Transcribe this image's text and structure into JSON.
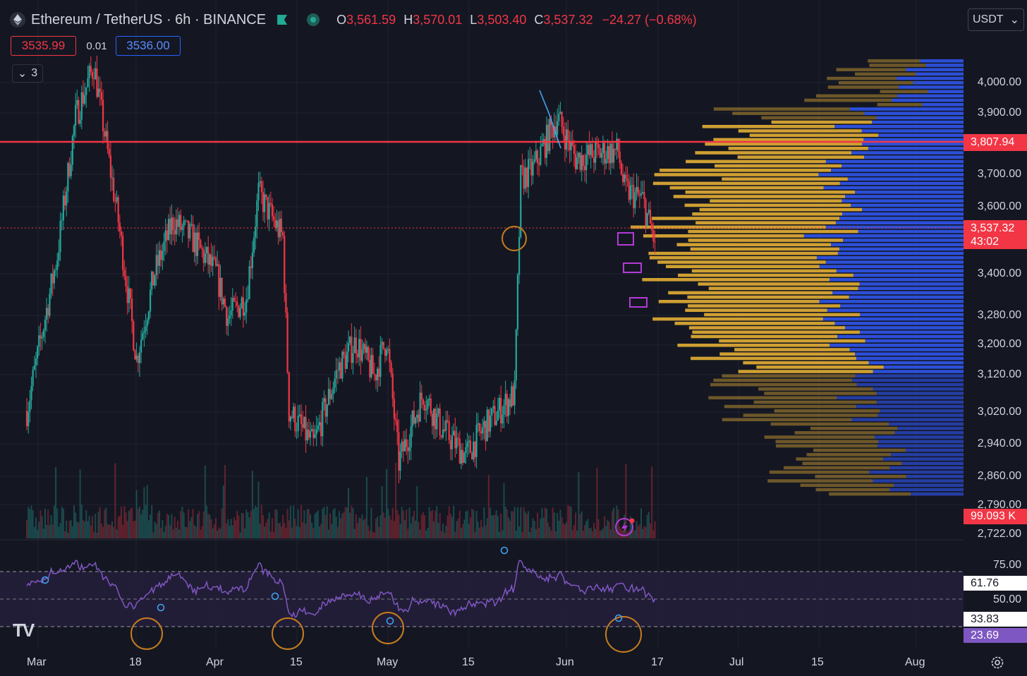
{
  "header": {
    "symbol_title": "Ethereum / TetherUS · 6h · BINANCE",
    "ohlc": [
      {
        "key": "O",
        "value": "3,561.59"
      },
      {
        "key": "H",
        "value": "3,570.01"
      },
      {
        "key": "L",
        "value": "3,503.40"
      },
      {
        "key": "C",
        "value": "3,537.32"
      }
    ],
    "change": "−24.27 (−0.68%)"
  },
  "trade": {
    "sell_price": "3535.99",
    "spread": "0.01",
    "buy_price": "3536.00"
  },
  "indicators_toggle": {
    "count": "3"
  },
  "currency_button": {
    "label": "USDT"
  },
  "price_axis": {
    "labels": [
      "4,000.00",
      "3,900.00",
      "3,700.00",
      "3,600.00",
      "3,400.00",
      "3,280.00",
      "3,200.00",
      "3,120.00",
      "3,020.00",
      "2,940.00",
      "2,860.00",
      "2,790.00",
      "2,722.00"
    ],
    "resistance_tag": "3,807.94",
    "last_price_tag": "3,537.32",
    "countdown": "43:02",
    "volume_tag": "99.093 K"
  },
  "rsi_axis": {
    "labels": [
      "75.00",
      "50.00"
    ],
    "value_tags": [
      "61.76",
      "33.83",
      "23.69"
    ]
  },
  "time_axis": [
    "Mar",
    "18",
    "Apr",
    "15",
    "May",
    "15",
    "Jun",
    "17",
    "Jul",
    "15",
    "Aug"
  ],
  "colors": {
    "background": "#141722",
    "up": "#26a69a",
    "down": "#f23645",
    "resistance": "#f23645",
    "profile_gold": "#d9a634",
    "profile_blue": "#2c4fd8",
    "rsi_line": "#7e57c2",
    "annotation_circle": "#c77d1e",
    "annotation_box": "#b33bd6"
  },
  "icons": [
    "ethereum-logo-icon",
    "flag-icon",
    "market-open-dot-icon",
    "chevron-down-icon",
    "tradingview-logo-icon",
    "settings-gear-icon",
    "alert-lightning-icon"
  ],
  "chart_data": {
    "type": "candlestick",
    "symbol": "ETHUSDT",
    "interval": "6h",
    "ylim": [
      2722,
      4000
    ],
    "resistance_level": 3807.94,
    "last_price": 3537.32,
    "close_path": [
      {
        "x": "Mar 1",
        "y": 3050
      },
      {
        "x": "Mar 6",
        "y": 3500
      },
      {
        "x": "Mar 9",
        "y": 3900
      },
      {
        "x": "Mar 12",
        "y": 4050
      },
      {
        "x": "Mar 16",
        "y": 3600
      },
      {
        "x": "Mar 19",
        "y": 3200
      },
      {
        "x": "Mar 22",
        "y": 3450
      },
      {
        "x": "Mar 25",
        "y": 3600
      },
      {
        "x": "Mar 28",
        "y": 3550
      },
      {
        "x": "Apr 1",
        "y": 3450
      },
      {
        "x": "Apr 3",
        "y": 3320
      },
      {
        "x": "Apr 6",
        "y": 3380
      },
      {
        "x": "Apr 8",
        "y": 3680
      },
      {
        "x": "Apr 12",
        "y": 3550
      },
      {
        "x": "Apr 13",
        "y": 3050
      },
      {
        "x": "Apr 17",
        "y": 2950
      },
      {
        "x": "Apr 21",
        "y": 3170
      },
      {
        "x": "Apr 24",
        "y": 3250
      },
      {
        "x": "Apr 27",
        "y": 3150
      },
      {
        "x": "Apr 29",
        "y": 3260
      },
      {
        "x": "May 1",
        "y": 2900
      },
      {
        "x": "May 5",
        "y": 3100
      },
      {
        "x": "May 8",
        "y": 3000
      },
      {
        "x": "May 12",
        "y": 2920
      },
      {
        "x": "May 15",
        "y": 3000
      },
      {
        "x": "May 20",
        "y": 3100
      },
      {
        "x": "May 21",
        "y": 3720
      },
      {
        "x": "May 23",
        "y": 3750
      },
      {
        "x": "May 27",
        "y": 3900
      },
      {
        "x": "May 30",
        "y": 3780
      },
      {
        "x": "Jun 4",
        "y": 3800
      },
      {
        "x": "Jun 6",
        "y": 3800
      },
      {
        "x": "Jun 7",
        "y": 3690
      },
      {
        "x": "Jun 10",
        "y": 3660
      },
      {
        "x": "Jun 12",
        "y": 3537
      }
    ],
    "rsi": {
      "levels": [
        75,
        50
      ],
      "values": [
        61.76,
        33.83,
        23.69
      ]
    }
  }
}
